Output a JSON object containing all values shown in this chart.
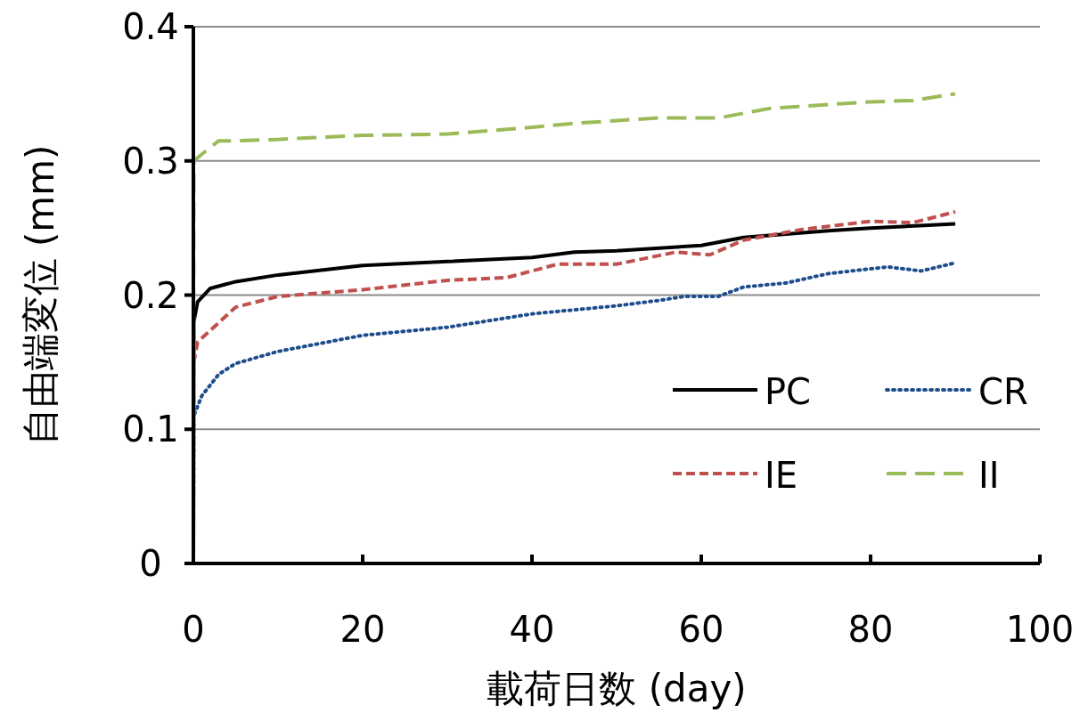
{
  "chart_data": {
    "type": "line",
    "xlabel": "載荷日数 (day)",
    "ylabel": "自由端変位 (mm)",
    "xlim": [
      0,
      100
    ],
    "xticks": [
      0,
      20,
      40,
      60,
      80,
      100
    ],
    "ylim": [
      0,
      0.4
    ],
    "yticks": [
      0,
      0.1,
      0.2,
      0.3,
      0.4
    ],
    "grid": "y",
    "legend": "bottom right",
    "marker": "none",
    "series": [
      {
        "name": "PC",
        "color": "#000000",
        "line_style": "solid",
        "x": [
          0,
          0.05,
          0.5,
          2,
          5,
          10,
          20,
          30,
          40,
          45,
          50,
          60,
          65,
          75,
          80,
          90
        ],
        "values": [
          0,
          0.18,
          0.195,
          0.205,
          0.21,
          0.215,
          0.222,
          0.225,
          0.228,
          0.232,
          0.233,
          0.237,
          0.243,
          0.248,
          0.25,
          0.253
        ]
      },
      {
        "name": "CR",
        "color": "#1f4e8c",
        "line_style": "dotted",
        "x": [
          0,
          0.05,
          1,
          3,
          5,
          10,
          20,
          30,
          40,
          50,
          55,
          58,
          62,
          65,
          70,
          75,
          82,
          86,
          90
        ],
        "values": [
          0,
          0.11,
          0.125,
          0.141,
          0.149,
          0.158,
          0.17,
          0.176,
          0.186,
          0.192,
          0.196,
          0.199,
          0.199,
          0.206,
          0.209,
          0.216,
          0.221,
          0.218,
          0.224
        ]
      },
      {
        "name": "IE",
        "color": "#c0504d",
        "line_style": "dashed",
        "x": [
          0,
          0.05,
          0.5,
          5,
          10,
          20,
          30,
          37,
          43,
          50,
          57,
          61,
          65,
          72,
          80,
          85,
          90
        ],
        "values": [
          0,
          0.15,
          0.165,
          0.191,
          0.199,
          0.204,
          0.211,
          0.213,
          0.223,
          0.223,
          0.232,
          0.23,
          0.241,
          0.249,
          0.255,
          0.254,
          0.262
        ]
      },
      {
        "name": "II",
        "color": "#9bbb59",
        "line_style": "longdash",
        "x": [
          0,
          0.05,
          1,
          3,
          5,
          10,
          20,
          30,
          40,
          45,
          55,
          62,
          68,
          75,
          80,
          85,
          90
        ],
        "values": [
          0,
          0.3,
          0.305,
          0.315,
          0.315,
          0.316,
          0.319,
          0.32,
          0.325,
          0.328,
          0.332,
          0.332,
          0.339,
          0.342,
          0.344,
          0.345,
          0.35
        ]
      }
    ]
  }
}
